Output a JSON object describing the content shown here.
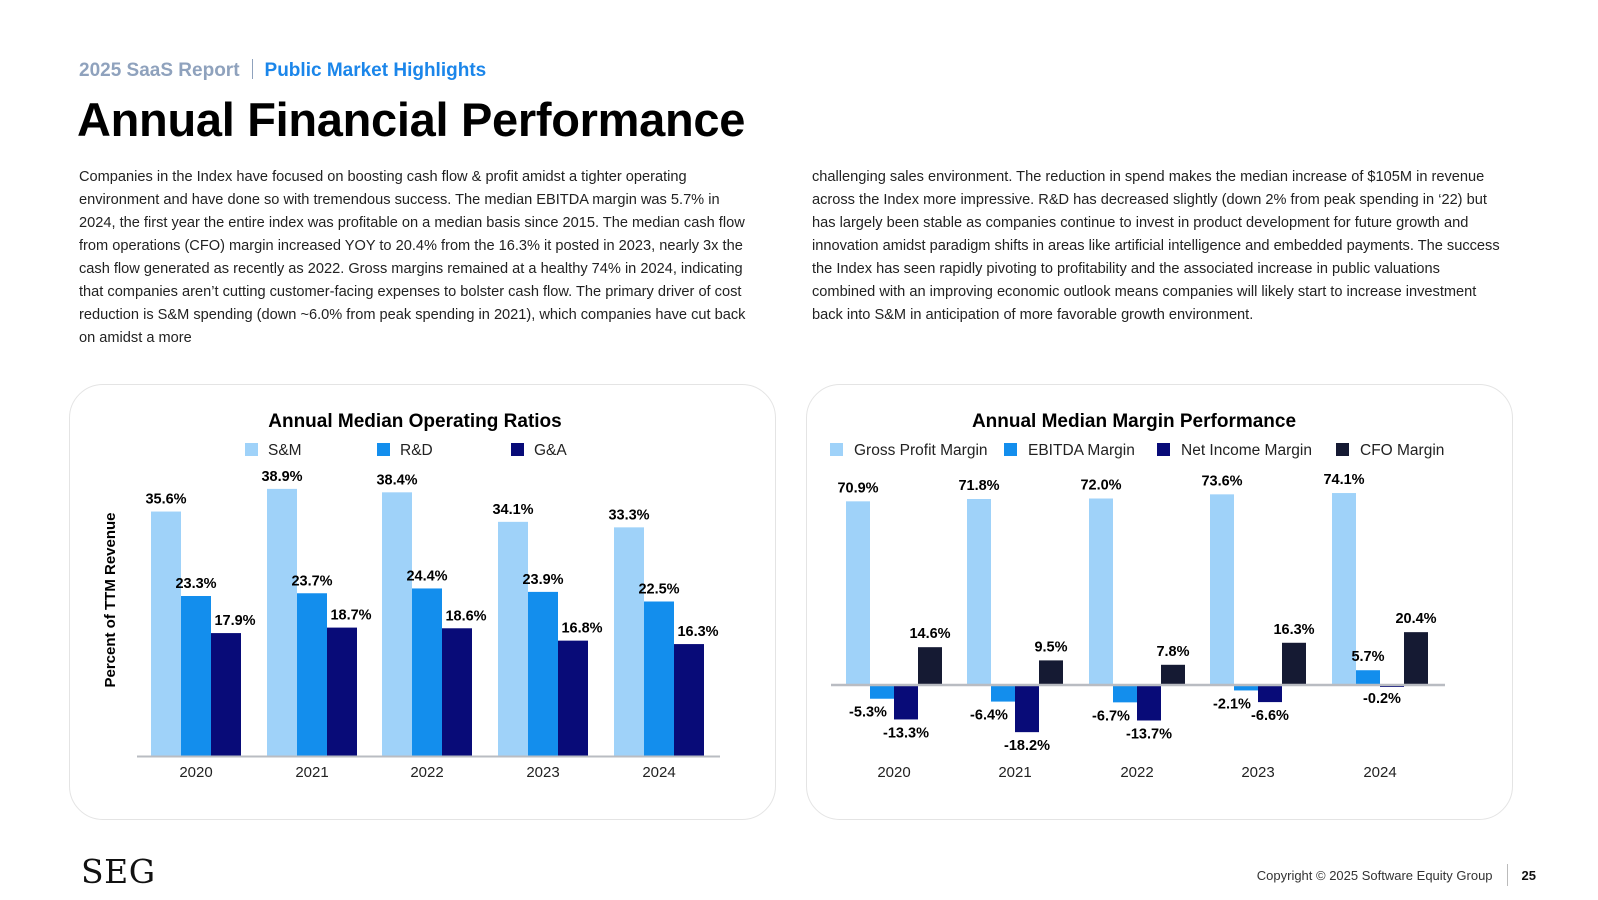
{
  "header": {
    "report_name": "2025 SaaS Report",
    "section": "Public Market Highlights"
  },
  "page_title": "Annual Financial Performance",
  "body": {
    "col1": "Companies in the Index have focused on boosting cash flow & profit amidst a tighter operating environment and have done so with tremendous success. The median EBITDA margin was 5.7% in 2024, the first year the entire index was profitable on a median basis since 2015. The median cash flow from operations (CFO) margin increased YOY to 20.4% from the 16.3% it posted in 2023, nearly 3x the cash flow generated as recently as 2022. Gross margins remained at a healthy 74% in 2024, indicating that companies aren’t cutting customer-facing expenses to bolster cash flow. The primary driver of cost reduction is S&M spending (down ~6.0% from peak spending in 2021), which companies have cut back on amidst a more",
    "col2": "challenging sales environment. The reduction in spend makes the median increase of $105M in revenue across the Index more impressive. R&D has decreased slightly (down 2% from peak spending in ‘22) but has largely been stable as companies continue to invest in product development for future growth and innovation amidst paradigm shifts in areas like artificial intelligence and embedded payments. The success the Index has seen rapidly pivoting to profitability and the associated increase in public valuations combined with an improving economic outlook means companies will likely start to increase investment back into S&M in anticipation of more favorable growth environment."
  },
  "chart_data": [
    {
      "type": "bar",
      "title": "Annual Median Operating Ratios",
      "categories": [
        "2020",
        "2021",
        "2022",
        "2023",
        "2024"
      ],
      "series": [
        {
          "name": "S&M",
          "values": [
            35.6,
            38.9,
            38.4,
            34.1,
            33.3
          ],
          "labels": [
            "35.6%",
            "38.9%",
            "38.4%",
            "34.1%",
            "33.3%"
          ],
          "color": "#9fd2f9"
        },
        {
          "name": "R&D",
          "values": [
            23.3,
            23.7,
            24.4,
            23.9,
            22.5
          ],
          "labels": [
            "23.3%",
            "23.7%",
            "24.4%",
            "23.9%",
            "22.5%"
          ],
          "color": "#138eed"
        },
        {
          "name": "G&A",
          "values": [
            17.9,
            18.7,
            18.6,
            16.8,
            16.3
          ],
          "labels": [
            "17.9%",
            "18.7%",
            "18.6%",
            "16.8%",
            "16.3%"
          ],
          "color": "#080b78"
        }
      ],
      "xlabel": "",
      "ylabel": "Percent of TTM Revenue",
      "ylim": [
        0,
        45
      ],
      "grid": false,
      "legend": "top-center"
    },
    {
      "type": "bar",
      "title": "Annual Median Margin Performance",
      "categories": [
        "2020",
        "2021",
        "2022",
        "2023",
        "2024"
      ],
      "series": [
        {
          "name": "Gross Profit Margin",
          "values": [
            70.9,
            71.8,
            72.0,
            73.6,
            74.1
          ],
          "labels": [
            "70.9%",
            "71.8%",
            "72.0%",
            "73.6%",
            "74.1%"
          ],
          "color": "#9fd2f9"
        },
        {
          "name": "EBITDA Margin",
          "values": [
            -5.3,
            -6.4,
            -6.7,
            -2.1,
            5.7
          ],
          "labels": [
            "-5.3%",
            "-6.4%",
            "-6.7%",
            "-2.1%",
            "5.7%"
          ],
          "color": "#138eed"
        },
        {
          "name": "Net Income Margin",
          "values": [
            -13.3,
            -18.2,
            -13.7,
            -6.6,
            -0.2
          ],
          "labels": [
            "-13.3%",
            "-18.2%",
            "-13.7%",
            "-6.6%",
            "-0.2%"
          ],
          "color": "#080b78"
        },
        {
          "name": "CFO Margin",
          "values": [
            14.6,
            9.5,
            7.8,
            16.3,
            20.4
          ],
          "labels": [
            "14.6%",
            "9.5%",
            "7.8%",
            "16.3%",
            "20.4%"
          ],
          "color": "#151a33"
        }
      ],
      "xlabel": "",
      "ylabel": "",
      "ylim": [
        -25,
        80
      ],
      "grid": false,
      "legend": "top-center"
    }
  ],
  "footer": {
    "copyright": "Copyright © 2025 Software Equity Group",
    "page_number": "25",
    "logo": "SEG"
  }
}
